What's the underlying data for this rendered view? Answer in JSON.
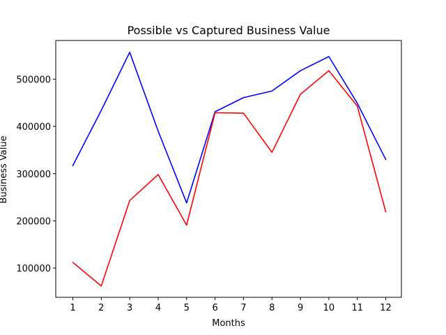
{
  "chart_data": {
    "type": "line",
    "title": "Possible vs Captured Business Value",
    "xlabel": "Months",
    "ylabel": "Business Value",
    "x": [
      1,
      2,
      3,
      4,
      5,
      6,
      7,
      8,
      9,
      10,
      11,
      12
    ],
    "xticks": [
      "1",
      "2",
      "3",
      "4",
      "5",
      "6",
      "7",
      "8",
      "9",
      "10",
      "11",
      "12"
    ],
    "yticks": [
      100000,
      200000,
      300000,
      400000,
      500000
    ],
    "ytick_labels": [
      "100000",
      "200000",
      "300000",
      "400000",
      "500000"
    ],
    "xlim": [
      0.4,
      12.55
    ],
    "ylim": [
      38000,
      582000
    ],
    "grid": false,
    "series": [
      {
        "color": "#0000ff",
        "values": [
          317000,
          434000,
          557000,
          390000,
          238000,
          431000,
          461000,
          475000,
          518000,
          548000,
          449000,
          330000
        ]
      },
      {
        "color": "#ff0000",
        "values": [
          112000,
          62000,
          243000,
          298000,
          191000,
          429000,
          428000,
          345000,
          468000,
          518000,
          443000,
          219000
        ]
      }
    ]
  }
}
